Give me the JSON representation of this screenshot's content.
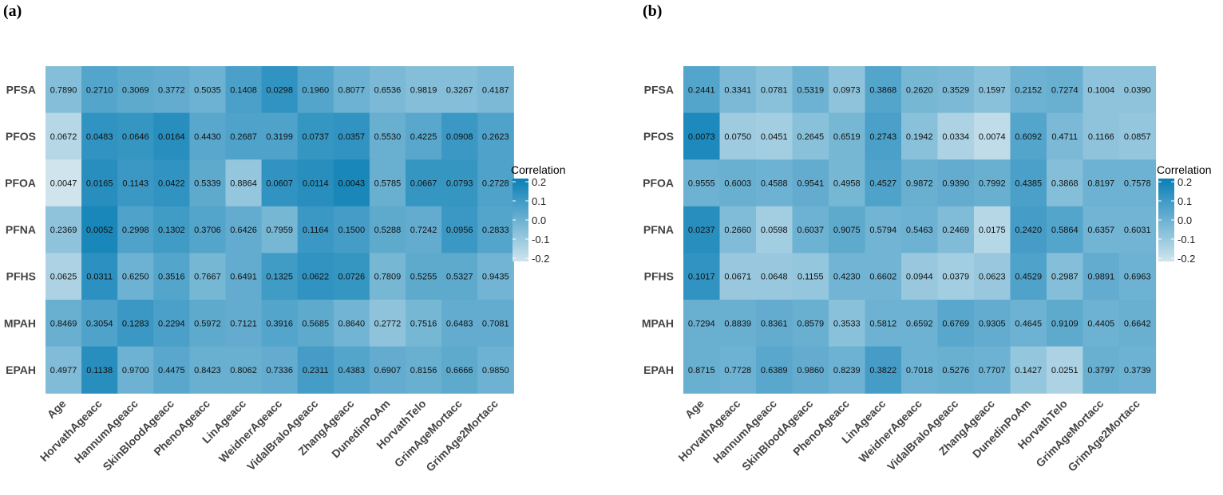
{
  "chart_data": [
    {
      "type": "heatmap",
      "panel_label": "(a)",
      "rows": [
        "PFSA",
        "PFOS",
        "PFOA",
        "PFNA",
        "PFHS",
        "MPAH",
        "EPAH"
      ],
      "columns": [
        "Age",
        "HorvathAgeacc",
        "HannumAgeacc",
        "SkinBloodAgeacc",
        "PhenoAgeacc",
        "LinAgeacc",
        "WeidnerAgeacc",
        "VidalBraloAgeacc",
        "ZhangAgeacc",
        "DunedinPoAm",
        "HorvathTelo",
        "GrimAgeMortacc",
        "GrimAge2Mortacc"
      ],
      "cell_labels": [
        [
          "0.7890",
          "0.2710",
          "0.3069",
          "0.3772",
          "0.5035",
          "0.1408",
          "0.0298",
          "0.1960",
          "0.8077",
          "0.6536",
          "0.9819",
          "0.3267",
          "0.4187"
        ],
        [
          "0.0672",
          "0.0483",
          "0.0646",
          "0.0164",
          "0.4430",
          "0.2687",
          "0.3199",
          "0.0737",
          "0.0357",
          "0.5530",
          "0.4225",
          "0.0908",
          "0.2623"
        ],
        [
          "0.0047",
          "0.0165",
          "0.1143",
          "0.0422",
          "0.5339",
          "0.8864",
          "0.0607",
          "0.0114",
          "0.0043",
          "0.5785",
          "0.0667",
          "0.0793",
          "0.2728"
        ],
        [
          "0.2369",
          "0.0052",
          "0.2998",
          "0.1302",
          "0.3706",
          "0.6426",
          "0.7959",
          "0.1164",
          "0.1500",
          "0.5288",
          "0.7242",
          "0.0956",
          "0.2833"
        ],
        [
          "0.0625",
          "0.0311",
          "0.6250",
          "0.3516",
          "0.7667",
          "0.6491",
          "0.1325",
          "0.0622",
          "0.0726",
          "0.7809",
          "0.5255",
          "0.5327",
          "0.9435"
        ],
        [
          "0.8469",
          "0.3054",
          "0.1283",
          "0.2294",
          "0.5972",
          "0.7121",
          "0.3916",
          "0.5685",
          "0.8640",
          "0.2772",
          "0.7516",
          "0.6483",
          "0.7081"
        ],
        [
          "0.4977",
          "0.1138",
          "0.9700",
          "0.4475",
          "0.8423",
          "0.8062",
          "0.7336",
          "0.2311",
          "0.4383",
          "0.6907",
          "0.8156",
          "0.6666",
          "0.9850"
        ]
      ],
      "correlation": [
        [
          -0.05,
          0.05,
          0.03,
          0.02,
          0.0,
          0.07,
          0.12,
          0.05,
          0.0,
          -0.03,
          -0.05,
          -0.05,
          -0.03
        ],
        [
          -0.15,
          0.12,
          0.11,
          0.14,
          0.04,
          0.06,
          0.06,
          0.11,
          0.12,
          0.01,
          0.04,
          0.1,
          0.06
        ],
        [
          -0.2,
          0.14,
          0.1,
          0.12,
          0.03,
          -0.08,
          0.12,
          0.14,
          0.17,
          0.01,
          0.11,
          0.11,
          0.06
        ],
        [
          -0.07,
          0.17,
          0.06,
          0.09,
          0.05,
          0.02,
          -0.02,
          0.1,
          0.08,
          0.03,
          0.02,
          0.1,
          0.05
        ],
        [
          -0.13,
          0.13,
          0.0,
          0.05,
          -0.02,
          0.02,
          0.09,
          0.12,
          0.11,
          -0.02,
          0.03,
          0.03,
          -0.01
        ],
        [
          0.01,
          0.06,
          0.1,
          0.07,
          0.03,
          0.02,
          0.05,
          0.03,
          -0.01,
          -0.07,
          -0.02,
          0.02,
          0.02
        ],
        [
          -0.04,
          0.14,
          0.0,
          0.04,
          0.01,
          0.01,
          0.02,
          0.08,
          0.05,
          0.02,
          0.01,
          0.03,
          0.0
        ]
      ],
      "legend": {
        "title": "Correlation",
        "ticks": [
          "0.2",
          "0.1",
          "0.0",
          "-0.1",
          "-0.2"
        ],
        "range": [
          -0.2,
          0.2
        ],
        "placement": "right"
      }
    },
    {
      "type": "heatmap",
      "panel_label": "(b)",
      "rows": [
        "PFSA",
        "PFOS",
        "PFOA",
        "PFNA",
        "PFHS",
        "MPAH",
        "EPAH"
      ],
      "columns": [
        "Age",
        "HorvathAgeacc",
        "HannumAgeacc",
        "SkinBloodAgeacc",
        "PhenoAgeacc",
        "LinAgeacc",
        "WeidnerAgeacc",
        "VidalBraloAgeacc",
        "ZhangAgeacc",
        "DunedinPoAm",
        "HorvathTelo",
        "GrimAgeMortacc",
        "GrimAge2Mortacc"
      ],
      "cell_labels": [
        [
          "0.2441",
          "0.3341",
          "0.0781",
          "0.5319",
          "0.0973",
          "0.3868",
          "0.2620",
          "0.3529",
          "0.1597",
          "0.2152",
          "0.7274",
          "0.1004",
          "0.0390"
        ],
        [
          "0.0073",
          "0.0750",
          "0.0451",
          "0.2645",
          "0.6519",
          "0.2743",
          "0.1942",
          "0.0334",
          "0.0074",
          "0.6092",
          "0.4711",
          "0.1166",
          "0.0857"
        ],
        [
          "0.9555",
          "0.6003",
          "0.4588",
          "0.9541",
          "0.4958",
          "0.4527",
          "0.9872",
          "0.9390",
          "0.7992",
          "0.4385",
          "0.3868",
          "0.8197",
          "0.7578"
        ],
        [
          "0.0237",
          "0.2660",
          "0.0598",
          "0.6037",
          "0.9075",
          "0.5794",
          "0.5463",
          "0.2469",
          "0.0175",
          "0.2420",
          "0.5864",
          "0.6357",
          "0.6031"
        ],
        [
          "0.1017",
          "0.0671",
          "0.0648",
          "0.1155",
          "0.4230",
          "0.6602",
          "0.0944",
          "0.0379",
          "0.0623",
          "0.4529",
          "0.2987",
          "0.9891",
          "0.6963"
        ],
        [
          "0.7294",
          "0.8839",
          "0.8361",
          "0.8579",
          "0.3533",
          "0.5812",
          "0.6592",
          "0.6769",
          "0.9305",
          "0.4645",
          "0.9109",
          "0.4405",
          "0.6642"
        ],
        [
          "0.8715",
          "0.7728",
          "0.6389",
          "0.9860",
          "0.8239",
          "0.3822",
          "0.7018",
          "0.5276",
          "0.7707",
          "0.1427",
          "0.0251",
          "0.3797",
          "0.3739"
        ]
      ],
      "correlation": [
        [
          0.05,
          -0.03,
          -0.06,
          0.0,
          -0.07,
          0.05,
          -0.02,
          -0.03,
          -0.06,
          0.0,
          0.01,
          -0.07,
          -0.07
        ],
        [
          0.16,
          -0.1,
          -0.11,
          -0.06,
          -0.02,
          0.07,
          -0.06,
          -0.13,
          -0.17,
          0.05,
          -0.03,
          -0.07,
          -0.08
        ],
        [
          0.0,
          0.01,
          0.0,
          0.02,
          -0.02,
          0.06,
          0.01,
          0.02,
          0.01,
          0.07,
          -0.05,
          0.0,
          0.0
        ],
        [
          0.14,
          -0.04,
          -0.11,
          0.0,
          0.03,
          -0.01,
          0.0,
          -0.04,
          -0.15,
          0.08,
          0.05,
          -0.01,
          -0.01
        ],
        [
          0.12,
          -0.09,
          -0.09,
          -0.08,
          -0.01,
          -0.01,
          -0.09,
          -0.11,
          -0.09,
          0.06,
          -0.05,
          0.02,
          0.0
        ],
        [
          0.01,
          0.01,
          0.02,
          0.01,
          -0.06,
          0.0,
          0.0,
          0.04,
          0.02,
          0.0,
          0.03,
          0.0,
          0.01
        ],
        [
          0.01,
          0.0,
          0.04,
          0.02,
          0.0,
          0.08,
          0.0,
          0.01,
          0.0,
          -0.08,
          -0.13,
          0.01,
          0.0
        ]
      ],
      "legend": {
        "title": "Correlation",
        "ticks": [
          "0.2",
          "0.1",
          "0.0",
          "-0.1",
          "-0.2"
        ],
        "range": [
          -0.2,
          0.2
        ],
        "placement": "right"
      }
    }
  ],
  "colors": {
    "low": "#cfe4ed",
    "high": "#0a7fb6"
  }
}
